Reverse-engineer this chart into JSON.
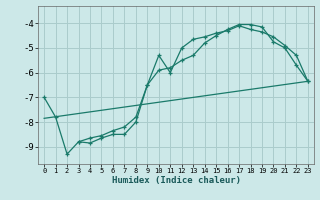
{
  "xlabel": "Humidex (Indice chaleur)",
  "background_color": "#cce8e8",
  "grid_color": "#aacccc",
  "line_color": "#1a7a6a",
  "xlim": [
    -0.5,
    23.5
  ],
  "ylim": [
    -9.7,
    -3.3
  ],
  "yticks": [
    -9,
    -8,
    -7,
    -6,
    -5,
    -4
  ],
  "xticks": [
    0,
    1,
    2,
    3,
    4,
    5,
    6,
    7,
    8,
    9,
    10,
    11,
    12,
    13,
    14,
    15,
    16,
    17,
    18,
    19,
    20,
    21,
    22,
    23
  ],
  "line1_x": [
    0,
    1,
    2,
    3,
    4,
    5,
    6,
    7,
    8,
    9,
    10,
    11,
    12,
    13,
    14,
    15,
    16,
    17,
    18,
    19,
    20,
    21,
    22,
    23
  ],
  "line1_y": [
    -7.0,
    -7.8,
    -9.3,
    -8.8,
    -8.65,
    -8.55,
    -8.35,
    -8.2,
    -7.8,
    -6.5,
    -5.9,
    -5.8,
    -5.5,
    -5.3,
    -4.8,
    -4.5,
    -4.25,
    -4.05,
    -4.05,
    -4.15,
    -4.75,
    -5.0,
    -5.7,
    -6.35
  ],
  "line2_x": [
    3,
    4,
    5,
    6,
    7,
    8,
    9,
    10,
    11,
    12,
    13,
    14,
    15,
    16,
    17,
    18,
    19,
    20,
    21,
    22,
    23
  ],
  "line2_y": [
    -8.8,
    -8.85,
    -8.65,
    -8.5,
    -8.5,
    -8.0,
    -6.5,
    -5.3,
    -6.0,
    -5.0,
    -4.65,
    -4.55,
    -4.4,
    -4.3,
    -4.1,
    -4.25,
    -4.35,
    -4.55,
    -4.9,
    -5.3,
    -6.35
  ],
  "line3_x": [
    0,
    23
  ],
  "line3_y": [
    -7.85,
    -6.35
  ]
}
